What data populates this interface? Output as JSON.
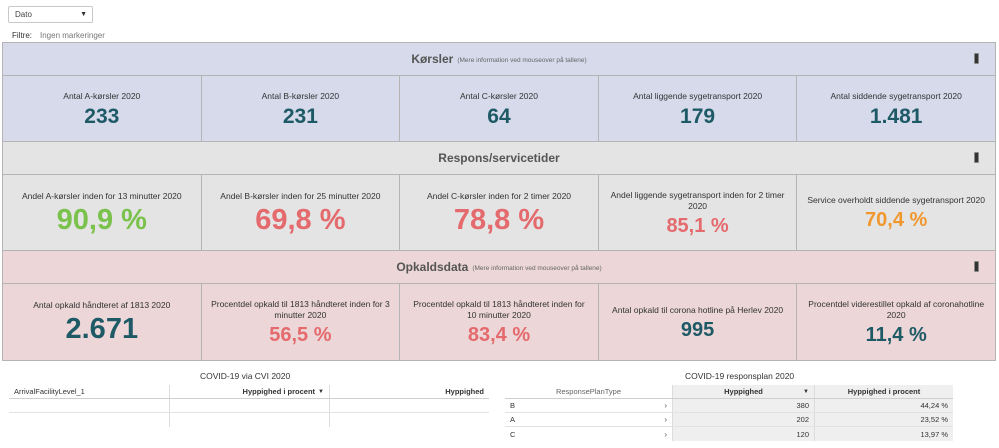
{
  "controls": {
    "date_dropdown": "Dato",
    "filter_label": "Filtre:",
    "filter_value": "Ingen markeringer"
  },
  "sections": {
    "korsler": {
      "title": "Kørsler",
      "subtitle": "(Mere information ved mouseover på tallene)",
      "tiles": [
        {
          "label": "Antal A-kørsler 2020",
          "value": "233"
        },
        {
          "label": "Antal B-kørsler 2020",
          "value": "231"
        },
        {
          "label": "Antal C-kørsler 2020",
          "value": "64"
        },
        {
          "label": "Antal liggende sygetransport 2020",
          "value": "179"
        },
        {
          "label": "Antal siddende sygetransport 2020",
          "value": "1.481"
        }
      ]
    },
    "respons": {
      "title": "Respons/servicetider",
      "subtitle": "",
      "tiles": [
        {
          "label": "Andel A-kørsler inden for 13 minutter 2020",
          "value": "90,9 %"
        },
        {
          "label": "Andel B-kørsler inden for 25 minutter 2020",
          "value": "69,8 %"
        },
        {
          "label": "Andel C-kørsler inden for 2 timer 2020",
          "value": "78,8 %"
        },
        {
          "label": "Andel liggende sygetransport inden for 2 timer 2020",
          "value": "85,1 %"
        },
        {
          "label": "Service overholdt siddende sygetransport 2020",
          "value": "70,4 %"
        }
      ]
    },
    "opkald": {
      "title": "Opkaldsdata",
      "subtitle": "(Mere information ved mouseover på tallene)",
      "tiles": [
        {
          "label": "Antal opkald håndteret af 1813 2020",
          "value": "2.671"
        },
        {
          "label": "Procentdel opkald til 1813 håndteret inden for 3 minutter 2020",
          "value": "56,5 %"
        },
        {
          "label": "Procentdel opkald til 1813 håndteret inden for 10 minutter 2020",
          "value": "83,4 %"
        },
        {
          "label": "Antal opkald til corona hotline på Herlev 2020",
          "value": "995"
        },
        {
          "label": "Procentdel viderestillet opkald af coronahotline 2020",
          "value": "11,4 %"
        }
      ]
    }
  },
  "colors": {
    "teal": "#1e5a66",
    "green": "#7bc24c",
    "red": "#e46a6d",
    "orange": "#f0982e",
    "blue_bg": "#d6daeb",
    "gray_bg": "#e4e4e4",
    "pink_bg": "#ecd6d7"
  },
  "table_cvi": {
    "title": "COVID-19 via CVI 2020",
    "columns": [
      "ArrivalFacilityLevel_1",
      "Hyppighed i procent",
      "Hyppighed"
    ]
  },
  "table_respons": {
    "title": "COVID-19 responsplan 2020",
    "columns": [
      "ResponsePlanType",
      "Hyppighed",
      "Hyppighed i procent"
    ],
    "rows": [
      {
        "type": "B",
        "count": "380",
        "pct": "44,24 %"
      },
      {
        "type": "A",
        "count": "202",
        "pct": "23,52 %"
      },
      {
        "type": "C",
        "count": "120",
        "pct": "13,97 %"
      }
    ]
  }
}
